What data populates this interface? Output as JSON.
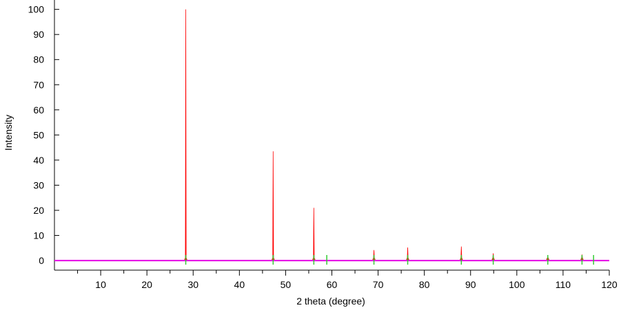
{
  "chart_data": {
    "type": "line",
    "title": "",
    "xlabel": "2 theta (degree)",
    "ylabel": "Intensity",
    "xlim": [
      0,
      120
    ],
    "ylim": [
      -6,
      104
    ],
    "x_ticks": [
      10,
      20,
      30,
      40,
      50,
      60,
      70,
      80,
      90,
      100,
      110,
      120
    ],
    "x_tick_labels": [
      "10",
      "20",
      "30",
      "40",
      "50",
      "60",
      "70",
      "80",
      "90",
      "100",
      "110",
      "120"
    ],
    "x_minor_ticks": [
      5,
      15,
      25,
      35,
      45,
      55,
      65,
      75,
      85,
      95,
      105,
      115
    ],
    "y_ticks": [
      0,
      10,
      20,
      30,
      40,
      50,
      60,
      70,
      80,
      90,
      100
    ],
    "y_tick_labels": [
      "0",
      "10",
      "20",
      "30",
      "40",
      "50",
      "60",
      "70",
      "80",
      "90",
      "100"
    ],
    "grid": false,
    "legend": "none",
    "series": [
      {
        "kind": "peaks",
        "color": "#ff0000",
        "peaks": [
          {
            "x": 28.4,
            "y": 100
          },
          {
            "x": 47.3,
            "y": 43.5
          },
          {
            "x": 56.1,
            "y": 21
          },
          {
            "x": 69.1,
            "y": 4.2
          },
          {
            "x": 76.4,
            "y": 5.2
          },
          {
            "x": 88.0,
            "y": 5.6
          },
          {
            "x": 94.9,
            "y": 2.9
          },
          {
            "x": 106.7,
            "y": 1.4
          },
          {
            "x": 114.1,
            "y": 2.4
          }
        ]
      },
      {
        "kind": "baseline",
        "color": "#e600e6",
        "x": [
          0,
          120
        ],
        "y": [
          0,
          0
        ]
      },
      {
        "kind": "reflection-markers",
        "color": "#33cc33",
        "x": [
          28.4,
          47.3,
          56.1,
          58.9,
          69.1,
          76.4,
          88.0,
          94.9,
          106.7,
          114.1,
          116.6
        ]
      }
    ]
  }
}
